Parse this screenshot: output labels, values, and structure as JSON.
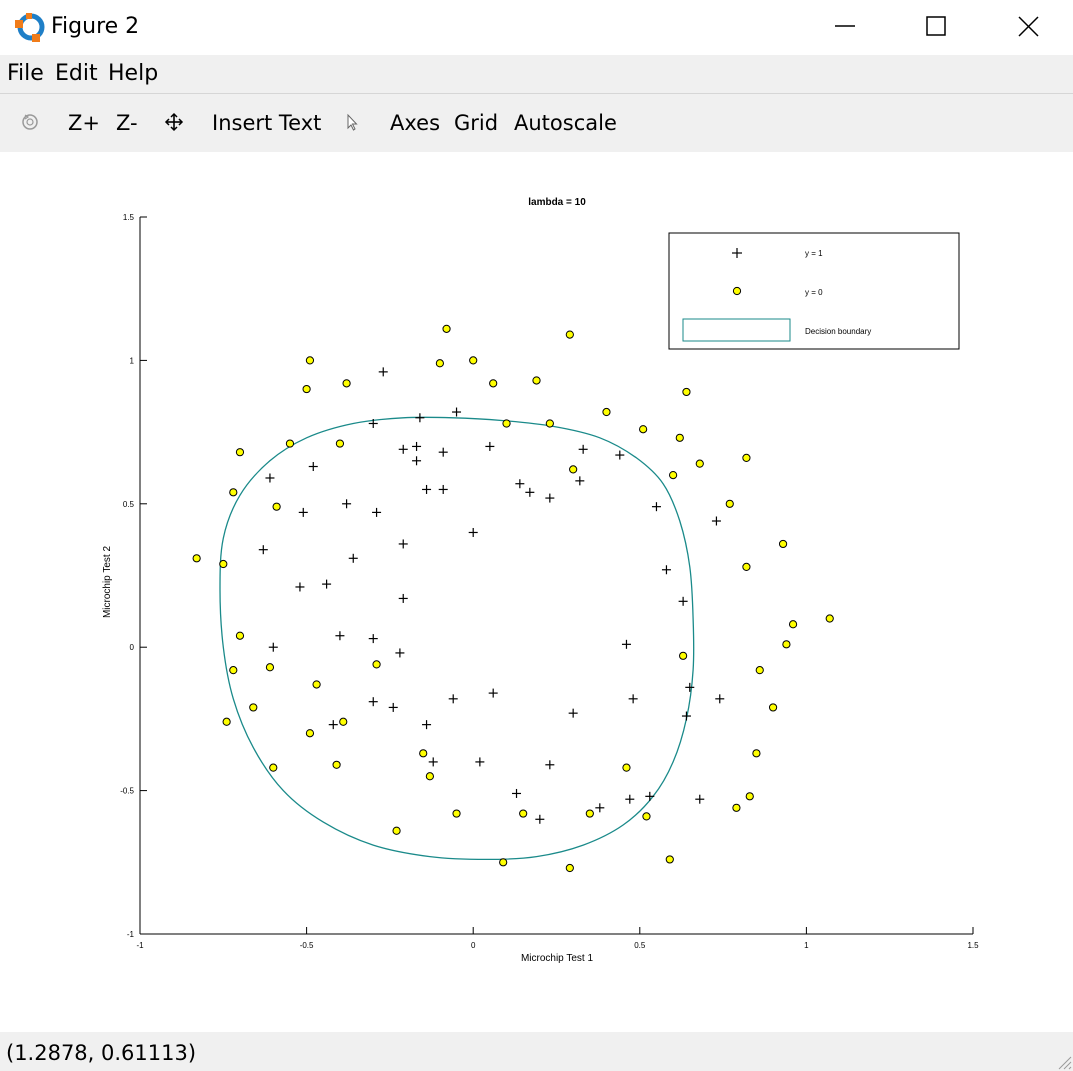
{
  "window": {
    "title": "Figure 2"
  },
  "menu": {
    "file": "File",
    "edit": "Edit",
    "help": "Help"
  },
  "toolbar": {
    "zoom_in": "Z+",
    "zoom_out": "Z-",
    "insert_text": "Insert Text",
    "axes": "Axes",
    "grid": "Grid",
    "autoscale": "Autoscale"
  },
  "icons": {
    "app": "octave-logo-icon",
    "rotate": "rotate-icon",
    "pan": "pan-move-icon",
    "select": "cursor-arrow-icon",
    "minimize": "minimize-icon",
    "maximize": "maximize-icon",
    "close": "close-icon"
  },
  "status": {
    "coords": "(1.2878, 0.61113)"
  },
  "colors": {
    "boundary": "#1a8a8a",
    "marker_fill": "#ffff00",
    "chrome_bg": "#f0f0f0"
  },
  "chart_data": {
    "type": "scatter",
    "title": "lambda = 10",
    "xlabel": "Microchip Test 1",
    "ylabel": "Microchip Test 2",
    "xlim": [
      -1,
      1.5
    ],
    "ylim": [
      -1,
      1.5
    ],
    "xticks": [
      -1,
      -0.5,
      0,
      0.5,
      1,
      1.5
    ],
    "xticklabels": [
      "-1",
      "-0.5",
      "0",
      "0.5",
      "1",
      "1.5"
    ],
    "yticks": [
      -1,
      -0.5,
      0,
      0.5,
      1,
      1.5
    ],
    "yticklabels": [
      "-1",
      "-0.5",
      "0",
      "0.5",
      "1",
      "1.5"
    ],
    "grid": false,
    "legend_position": "top-right",
    "series": [
      {
        "name": "y = 1",
        "marker": "plus",
        "points": [
          [
            -0.27,
            0.96
          ],
          [
            -0.16,
            0.8
          ],
          [
            -0.05,
            0.82
          ],
          [
            -0.3,
            0.78
          ],
          [
            -0.21,
            0.69
          ],
          [
            -0.17,
            0.7
          ],
          [
            -0.09,
            0.68
          ],
          [
            0.05,
            0.7
          ],
          [
            -0.48,
            0.63
          ],
          [
            -0.17,
            0.65
          ],
          [
            -0.61,
            0.59
          ],
          [
            0.33,
            0.69
          ],
          [
            0.44,
            0.67
          ],
          [
            -0.14,
            0.55
          ],
          [
            -0.09,
            0.55
          ],
          [
            0.14,
            0.57
          ],
          [
            0.17,
            0.54
          ],
          [
            0.23,
            0.52
          ],
          [
            0.32,
            0.58
          ],
          [
            -0.38,
            0.5
          ],
          [
            -0.51,
            0.47
          ],
          [
            -0.29,
            0.47
          ],
          [
            0.55,
            0.49
          ],
          [
            0.73,
            0.44
          ],
          [
            -0.0,
            0.4
          ],
          [
            -0.21,
            0.36
          ],
          [
            -0.63,
            0.34
          ],
          [
            -0.36,
            0.31
          ],
          [
            0.58,
            0.27
          ],
          [
            -0.52,
            0.21
          ],
          [
            -0.44,
            0.22
          ],
          [
            -0.21,
            0.17
          ],
          [
            0.63,
            0.16
          ],
          [
            -0.4,
            0.04
          ],
          [
            -0.3,
            0.03
          ],
          [
            -0.6,
            0.0
          ],
          [
            0.46,
            0.01
          ],
          [
            -0.22,
            -0.02
          ],
          [
            0.65,
            -0.14
          ],
          [
            0.06,
            -0.16
          ],
          [
            -0.06,
            -0.18
          ],
          [
            -0.3,
            -0.19
          ],
          [
            0.48,
            -0.18
          ],
          [
            0.74,
            -0.18
          ],
          [
            -0.24,
            -0.21
          ],
          [
            0.3,
            -0.23
          ],
          [
            0.64,
            -0.24
          ],
          [
            -0.14,
            -0.27
          ],
          [
            -0.42,
            -0.27
          ],
          [
            -0.12,
            -0.4
          ],
          [
            0.02,
            -0.4
          ],
          [
            0.23,
            -0.41
          ],
          [
            0.13,
            -0.51
          ],
          [
            0.47,
            -0.53
          ],
          [
            0.53,
            -0.52
          ],
          [
            0.68,
            -0.53
          ],
          [
            0.38,
            -0.56
          ],
          [
            0.2,
            -0.6
          ]
        ]
      },
      {
        "name": "y = 0",
        "marker": "circle",
        "points": [
          [
            -0.08,
            1.11
          ],
          [
            0.29,
            1.09
          ],
          [
            -0.49,
            1.0
          ],
          [
            -0.1,
            0.99
          ],
          [
            -0.0,
            1.0
          ],
          [
            -0.38,
            0.92
          ],
          [
            -0.5,
            0.9
          ],
          [
            0.06,
            0.92
          ],
          [
            0.19,
            0.93
          ],
          [
            0.64,
            0.89
          ],
          [
            0.4,
            0.82
          ],
          [
            0.1,
            0.78
          ],
          [
            0.23,
            0.78
          ],
          [
            0.51,
            0.76
          ],
          [
            0.62,
            0.73
          ],
          [
            -0.55,
            0.71
          ],
          [
            -0.4,
            0.71
          ],
          [
            -0.7,
            0.68
          ],
          [
            0.82,
            0.66
          ],
          [
            0.68,
            0.64
          ],
          [
            0.3,
            0.62
          ],
          [
            0.6,
            0.6
          ],
          [
            -0.72,
            0.54
          ],
          [
            -0.59,
            0.49
          ],
          [
            0.77,
            0.5
          ],
          [
            0.93,
            0.36
          ],
          [
            -0.83,
            0.31
          ],
          [
            -0.75,
            0.29
          ],
          [
            0.82,
            0.28
          ],
          [
            0.96,
            0.08
          ],
          [
            1.07,
            0.1
          ],
          [
            -0.7,
            0.04
          ],
          [
            0.94,
            0.01
          ],
          [
            0.63,
            -0.03
          ],
          [
            -0.29,
            -0.06
          ],
          [
            -0.61,
            -0.07
          ],
          [
            -0.72,
            -0.08
          ],
          [
            0.86,
            -0.08
          ],
          [
            -0.47,
            -0.13
          ],
          [
            -0.66,
            -0.21
          ],
          [
            0.9,
            -0.21
          ],
          [
            -0.74,
            -0.26
          ],
          [
            -0.39,
            -0.26
          ],
          [
            -0.49,
            -0.3
          ],
          [
            -0.15,
            -0.37
          ],
          [
            0.85,
            -0.37
          ],
          [
            -0.6,
            -0.42
          ],
          [
            -0.41,
            -0.41
          ],
          [
            0.46,
            -0.42
          ],
          [
            -0.13,
            -0.45
          ],
          [
            0.83,
            -0.52
          ],
          [
            0.79,
            -0.56
          ],
          [
            -0.05,
            -0.58
          ],
          [
            0.15,
            -0.58
          ],
          [
            0.35,
            -0.58
          ],
          [
            0.52,
            -0.59
          ],
          [
            -0.23,
            -0.64
          ],
          [
            0.59,
            -0.74
          ],
          [
            0.09,
            -0.75
          ],
          [
            0.29,
            -0.77
          ]
        ]
      },
      {
        "name": "Decision boundary",
        "type": "closed-line",
        "points": [
          [
            0.04,
            -0.74
          ],
          [
            0.19,
            -0.73
          ],
          [
            0.33,
            -0.69
          ],
          [
            0.45,
            -0.62
          ],
          [
            0.54,
            -0.52
          ],
          [
            0.6,
            -0.4
          ],
          [
            0.64,
            -0.25
          ],
          [
            0.66,
            -0.08
          ],
          [
            0.66,
            0.1
          ],
          [
            0.65,
            0.28
          ],
          [
            0.62,
            0.44
          ],
          [
            0.57,
            0.57
          ],
          [
            0.49,
            0.66
          ],
          [
            0.38,
            0.73
          ],
          [
            0.24,
            0.77
          ],
          [
            0.09,
            0.79
          ],
          [
            -0.06,
            0.8
          ],
          [
            -0.21,
            0.8
          ],
          [
            -0.36,
            0.78
          ],
          [
            -0.5,
            0.73
          ],
          [
            -0.61,
            0.65
          ],
          [
            -0.7,
            0.53
          ],
          [
            -0.75,
            0.38
          ],
          [
            -0.76,
            0.2
          ],
          [
            -0.75,
            0.0
          ],
          [
            -0.72,
            -0.18
          ],
          [
            -0.66,
            -0.35
          ],
          [
            -0.57,
            -0.5
          ],
          [
            -0.45,
            -0.61
          ],
          [
            -0.3,
            -0.69
          ],
          [
            -0.13,
            -0.73
          ]
        ]
      }
    ]
  }
}
